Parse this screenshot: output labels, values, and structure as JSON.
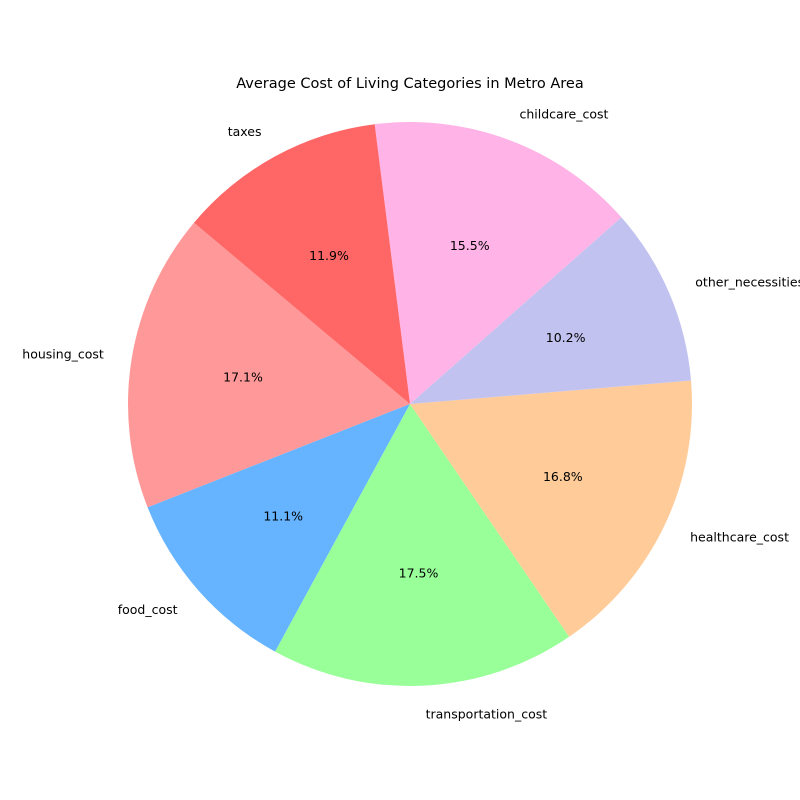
{
  "chart_data": {
    "type": "pie",
    "title": "Average Cost of Living Categories in Metro Area",
    "slices": [
      {
        "label": "housing_cost",
        "value": 17.1,
        "pct_label": "17.1%",
        "color": "#ff9999"
      },
      {
        "label": "food_cost",
        "value": 11.1,
        "pct_label": "11.1%",
        "color": "#66b3ff"
      },
      {
        "label": "transportation_cost",
        "value": 17.5,
        "pct_label": "17.5%",
        "color": "#99ff99"
      },
      {
        "label": "healthcare_cost",
        "value": 16.8,
        "pct_label": "16.8%",
        "color": "#ffcc99"
      },
      {
        "label": "other_necessities",
        "value": 10.2,
        "pct_label": "10.2%",
        "color": "#c2c2f0"
      },
      {
        "label": "childcare_cost",
        "value": 15.5,
        "pct_label": "15.5%",
        "color": "#ffb3e6"
      },
      {
        "label": "taxes",
        "value": 11.9,
        "pct_label": "11.9%",
        "color": "#ff6666"
      }
    ]
  }
}
